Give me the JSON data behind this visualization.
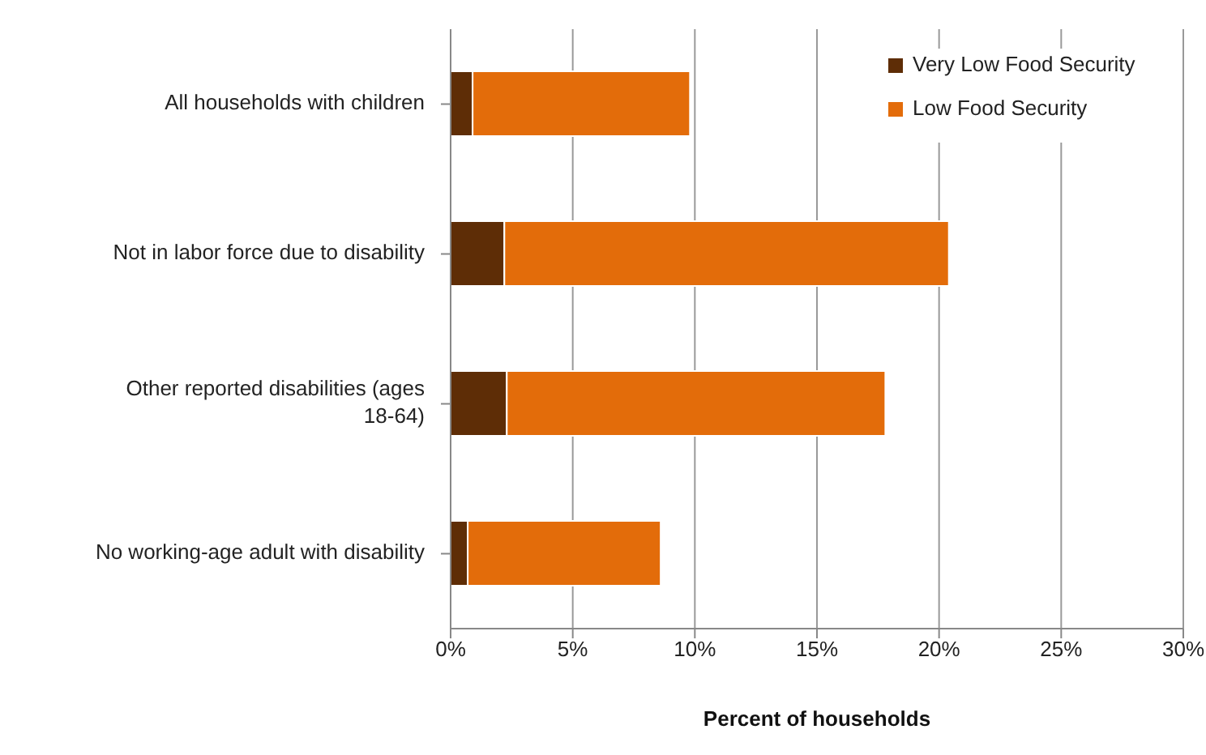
{
  "chart_data": {
    "type": "bar",
    "orientation": "horizontal",
    "stacked": true,
    "xlabel": "Percent of households",
    "categories": [
      "All households with children",
      "Not in labor force due to disability",
      "Other reported disabilities  (ages 18-64)",
      "No working-age adult with disability"
    ],
    "series": [
      {
        "name": "Very Low Food Security",
        "color": "#5e2d06",
        "values": [
          0.9,
          2.2,
          2.3,
          0.7
        ]
      },
      {
        "name": "Low Food Security",
        "color": "#e36c0a",
        "values": [
          8.9,
          18.2,
          15.5,
          7.9
        ]
      }
    ],
    "xlim": [
      0,
      30
    ],
    "xticks": [
      {
        "value": 0,
        "label": "0%"
      },
      {
        "value": 5,
        "label": "5%"
      },
      {
        "value": 10,
        "label": "10%"
      },
      {
        "value": 15,
        "label": "15%"
      },
      {
        "value": 20,
        "label": "20%"
      },
      {
        "value": 25,
        "label": "25%"
      },
      {
        "value": 30,
        "label": "30%"
      }
    ],
    "grid": "x",
    "legend": "top right"
  }
}
